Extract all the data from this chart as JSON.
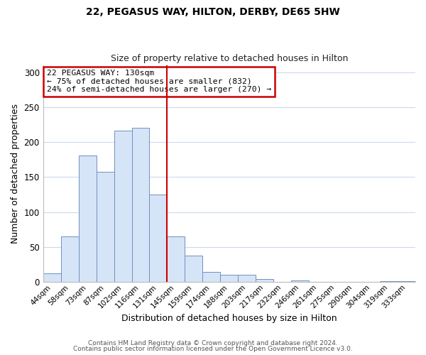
{
  "title": "22, PEGASUS WAY, HILTON, DERBY, DE65 5HW",
  "subtitle": "Size of property relative to detached houses in Hilton",
  "xlabel": "Distribution of detached houses by size in Hilton",
  "ylabel": "Number of detached properties",
  "bar_labels": [
    "44sqm",
    "58sqm",
    "73sqm",
    "87sqm",
    "102sqm",
    "116sqm",
    "131sqm",
    "145sqm",
    "159sqm",
    "174sqm",
    "188sqm",
    "203sqm",
    "217sqm",
    "232sqm",
    "246sqm",
    "261sqm",
    "275sqm",
    "290sqm",
    "304sqm",
    "319sqm",
    "333sqm"
  ],
  "bar_values": [
    12,
    65,
    181,
    157,
    216,
    221,
    125,
    65,
    37,
    14,
    10,
    10,
    4,
    0,
    2,
    0,
    0,
    0,
    0,
    1,
    1
  ],
  "bar_color": "#d6e4f7",
  "bar_edge_color": "#7090c0",
  "highlight_line_color": "#cc0000",
  "annotation_title": "22 PEGASUS WAY: 130sqm",
  "annotation_line1": "← 75% of detached houses are smaller (832)",
  "annotation_line2": "24% of semi-detached houses are larger (270) →",
  "annotation_box_edge": "#cc0000",
  "ylim": [
    0,
    310
  ],
  "yticks": [
    0,
    50,
    100,
    150,
    200,
    250,
    300
  ],
  "footer1": "Contains HM Land Registry data © Crown copyright and database right 2024.",
  "footer2": "Contains public sector information licensed under the Open Government Licence v3.0.",
  "background_color": "#ffffff",
  "grid_color": "#ccdaec"
}
